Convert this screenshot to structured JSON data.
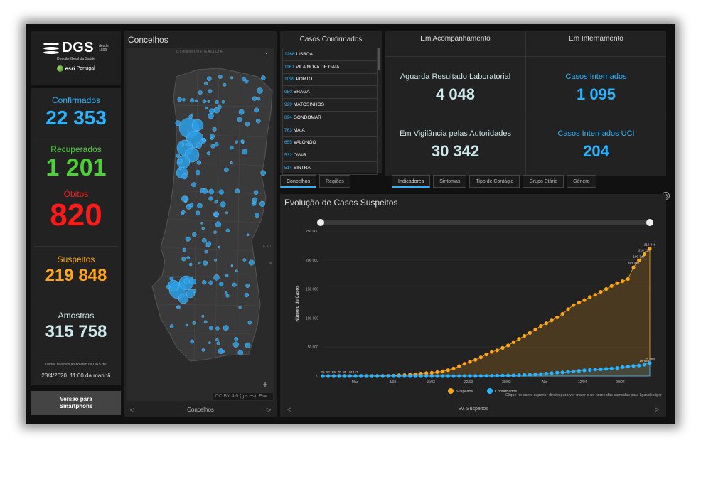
{
  "logo": {
    "name": "DGS",
    "since_line1": "desde",
    "since_line2": "1899",
    "subtitle": "Direção-Geral da Saúde",
    "partner_brand": "esri",
    "partner_country": "Portugal"
  },
  "stats": {
    "confirmed": {
      "label": "Confirmados",
      "value": "22 353",
      "color": "#2bb3ff"
    },
    "recovered": {
      "label": "Recuperados",
      "value": "1 201",
      "color": "#4cd137"
    },
    "deaths": {
      "label": "Óbitos",
      "value": "820",
      "color": "#ff1a1a"
    },
    "suspected": {
      "label": "Suspeitos",
      "value": "219 848",
      "color": "#ffa51a"
    },
    "samples": {
      "label": "Amostras",
      "value": "315 758",
      "color": "#cde8ea"
    },
    "note": "Dados relativos ao boletim da DGS de:",
    "date": "23/4/2020, 11:00 da manhã"
  },
  "smartphone_button": {
    "line1": "Versão para",
    "line2": "Smartphone"
  },
  "map": {
    "title": "Concelhos",
    "footer": "Concelhos",
    "attribution": "CC BY 4.0 (gis.es), Esri...",
    "label_top": "Compostela  GALICIA",
    "label_right": "EXT",
    "label_right2": "M"
  },
  "cases_list": {
    "title": "Casos Confirmados",
    "items": [
      {
        "count": "1266",
        "name": "LISBOA"
      },
      {
        "count": "1161",
        "name": "VILA NOVA DE GAIA"
      },
      {
        "count": "1099",
        "name": "PORTO"
      },
      {
        "count": "950",
        "name": "BRAGA"
      },
      {
        "count": "929",
        "name": "MATOSINHOS"
      },
      {
        "count": "894",
        "name": "GONDOMAR"
      },
      {
        "count": "763",
        "name": "MAIA"
      },
      {
        "count": "655",
        "name": "VALONGO"
      },
      {
        "count": "532",
        "name": "OVAR"
      },
      {
        "count": "514",
        "name": "SINTRA"
      }
    ],
    "tabs": [
      "Concelhos",
      "Regiões"
    ]
  },
  "indicators": {
    "head_left": "Em Acompanhamento",
    "head_right": "Em Internamento",
    "awaiting": {
      "label": "Aguarda Resultado Laboratorial",
      "value": "4 048",
      "color": "#cde8ea"
    },
    "surveillance": {
      "label": "Em Vigilância pelas Autoridades",
      "value": "30 342",
      "color": "#cde8ea"
    },
    "hospitalized": {
      "label": "Casos Internados",
      "value": "1 095",
      "color": "#2bb3ff"
    },
    "icu": {
      "label": "Casos Internados UCI",
      "value": "204",
      "color": "#2bb3ff"
    },
    "tabs": [
      "Indicadores",
      "Sintomas",
      "Tipo de Contágio",
      "Grupo Etário",
      "Género"
    ]
  },
  "chart_panel": {
    "title": "Evolução de Casos Suspeitos",
    "footer": "Ev. Suspeitos",
    "hint": "Clique no canto superior direito para ver maior e no nome das camadas para ligar/desligar"
  },
  "chart_data": {
    "type": "line",
    "ylabel": "Número de Casos",
    "ylim": [
      0,
      250000
    ],
    "yticks": [
      "0",
      "50 000",
      "100 000",
      "150 000",
      "200 000",
      "250 000"
    ],
    "xticks": [
      "Mar",
      "8/03",
      "15/03",
      "22/03",
      "29/03",
      "Abr",
      "12/04",
      "20/04"
    ],
    "series": [
      {
        "name": "Suspeitos",
        "color": "#ffa51a",
        "values": [
          25,
          51,
          59,
          70,
          85,
          101,
          117,
          133,
          147,
          224,
          281,
          339,
          375,
          637,
          1308,
          1704,
          2271,
          2908,
          4268,
          5067,
          5695,
          6961,
          8213,
          10121,
          13155,
          17153,
          21185,
          24692,
          28001,
          32273,
          37263,
          41624,
          44365,
          48512,
          52823,
          58291,
          64083,
          69213,
          74301,
          80230,
          86234,
          91211,
          96012,
          101235,
          107211,
          115161,
          122351,
          126412,
          131016,
          136216,
          140015,
          145212,
          150163,
          155325,
          160230,
          163512,
          167225,
          187434,
          199348,
          210138,
          219848
        ]
      },
      {
        "name": "Confirmados",
        "color": "#2bb3ff",
        "values": [
          0,
          0,
          0,
          0,
          0,
          0,
          0,
          0,
          0,
          0,
          0,
          0,
          0,
          0,
          0,
          0,
          0,
          2,
          4,
          6,
          9,
          13,
          21,
          30,
          41,
          59,
          78,
          112,
          169,
          245,
          331,
          448,
          642,
          785,
          1020,
          1280,
          1600,
          2060,
          2362,
          2995,
          3544,
          4268,
          5170,
          5962,
          6408,
          7443,
          8251,
          9034,
          9886,
          10524,
          11278,
          11730,
          12442,
          13141,
          13956,
          15472,
          16585,
          17448,
          18091,
          19685,
          22353
        ]
      }
    ],
    "point_labels_shown": [
      "25",
      "51",
      "59",
      "70",
      "85",
      "101",
      "117",
      "187 434",
      "199 348",
      "210 138",
      "219 848",
      "19 685",
      "22 353"
    ],
    "legend": "bottom"
  }
}
